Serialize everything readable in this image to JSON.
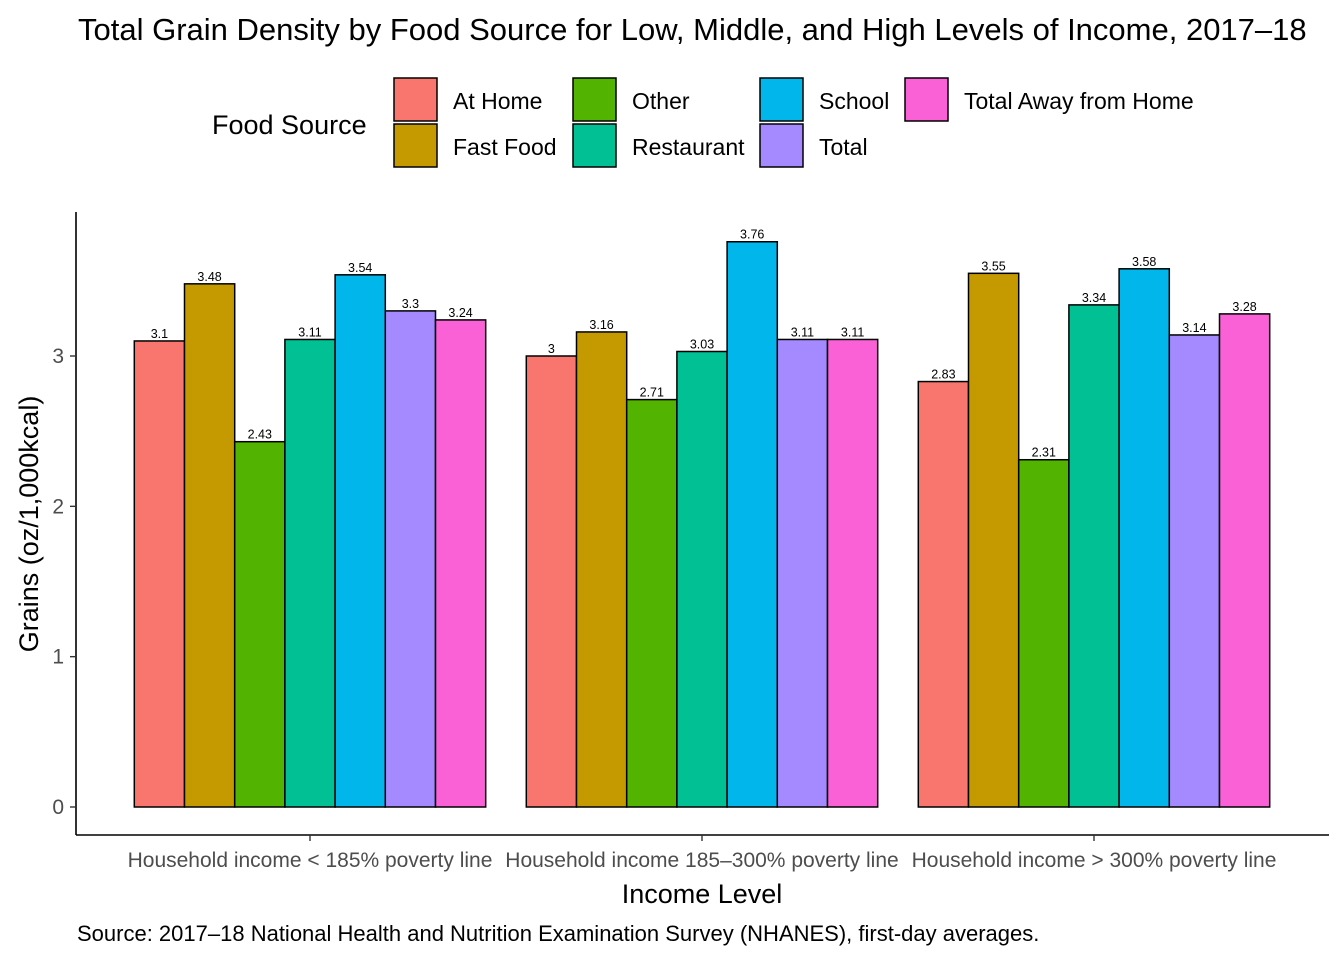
{
  "chart_data": {
    "type": "bar",
    "title": "Total Grain Density by Food Source for Low, Middle, and High Levels of Income, 2017–18",
    "xlabel": "Income Level",
    "ylabel": "Grains (oz/1,000kcal)",
    "caption": "Source: 2017–18 National Health and Nutrition Examination Survey (NHANES), first-day averages.",
    "legend_title": "Food Source",
    "legend_position": "top",
    "grid": false,
    "ylim": [
      0,
      3.94
    ],
    "yticks": [
      0,
      1,
      2,
      3
    ],
    "categories": [
      "Household income < 185% poverty line",
      "Household income 185–300% poverty line",
      "Household income > 300% poverty line"
    ],
    "series": [
      {
        "name": "At Home",
        "color": "#F8766D",
        "values": [
          3.1,
          3.0,
          2.83
        ],
        "labels": [
          "3.1",
          "3",
          "2.83"
        ]
      },
      {
        "name": "Fast Food",
        "color": "#C49A00",
        "values": [
          3.48,
          3.16,
          3.55
        ],
        "labels": [
          "3.48",
          "3.16",
          "3.55"
        ]
      },
      {
        "name": "Other",
        "color": "#53B400",
        "values": [
          2.43,
          2.71,
          2.31
        ],
        "labels": [
          "2.43",
          "2.71",
          "2.31"
        ]
      },
      {
        "name": "Restaurant",
        "color": "#00C094",
        "values": [
          3.11,
          3.03,
          3.34
        ],
        "labels": [
          "3.11",
          "3.03",
          "3.34"
        ]
      },
      {
        "name": "School",
        "color": "#00B6EB",
        "values": [
          3.54,
          3.76,
          3.58
        ],
        "labels": [
          "3.54",
          "3.76",
          "3.58"
        ]
      },
      {
        "name": "Total",
        "color": "#A58AFF",
        "values": [
          3.3,
          3.11,
          3.14
        ],
        "labels": [
          "3.3",
          "3.11",
          "3.14"
        ]
      },
      {
        "name": "Total Away from Home",
        "color": "#FB61D7",
        "values": [
          3.24,
          3.11,
          3.28
        ],
        "labels": [
          "3.24",
          "3.11",
          "3.28"
        ]
      }
    ]
  }
}
